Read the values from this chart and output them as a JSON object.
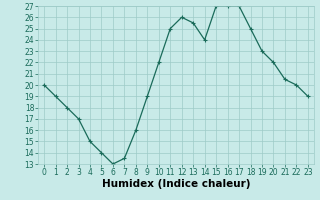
{
  "x": [
    0,
    1,
    2,
    3,
    4,
    5,
    6,
    7,
    8,
    9,
    10,
    11,
    12,
    13,
    14,
    15,
    16,
    17,
    18,
    19,
    20,
    21,
    22,
    23
  ],
  "y": [
    20,
    19,
    18,
    17,
    15,
    14,
    13,
    13.5,
    16,
    19,
    22,
    25,
    26,
    25.5,
    24,
    27,
    27,
    27,
    25,
    23,
    22,
    20.5,
    20,
    19
  ],
  "line_color": "#1a6b5a",
  "marker": "o",
  "marker_size": 2.5,
  "bg_color": "#c8eae8",
  "grid_color": "#9ecbc8",
  "xlabel": "Humidex (Indice chaleur)",
  "ylim": [
    13,
    27
  ],
  "xlim_min": -0.5,
  "xlim_max": 23.5,
  "yticks": [
    13,
    14,
    15,
    16,
    17,
    18,
    19,
    20,
    21,
    22,
    23,
    24,
    25,
    26,
    27
  ],
  "xticks": [
    0,
    1,
    2,
    3,
    4,
    5,
    6,
    7,
    8,
    9,
    10,
    11,
    12,
    13,
    14,
    15,
    16,
    17,
    18,
    19,
    20,
    21,
    22,
    23
  ],
  "tick_fontsize": 5.5,
  "xlabel_fontsize": 7.5
}
